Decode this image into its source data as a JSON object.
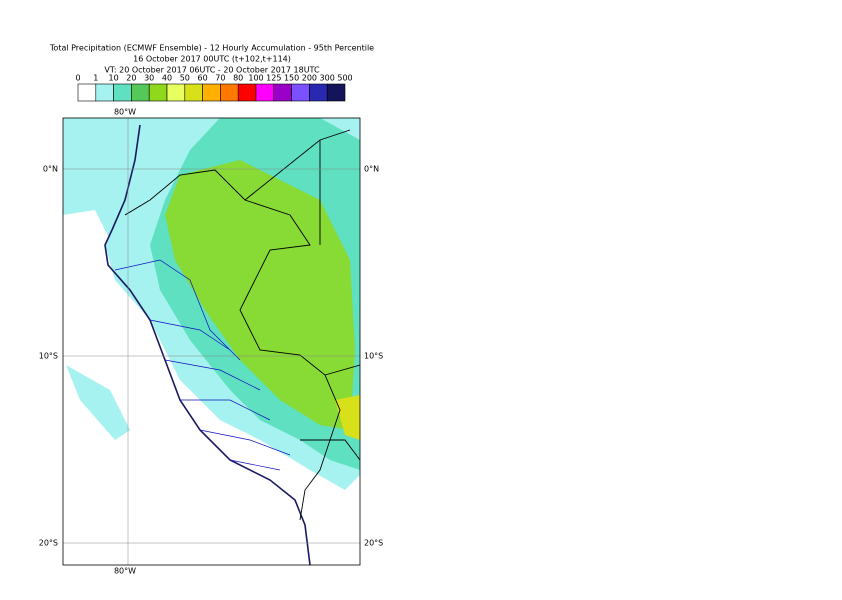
{
  "header": {
    "lines": [
      "Total Precipitation (ECMWF Ensemble) - 12 Hourly Accumulation - 95th Percentile",
      "16 October 2017 00UTC (t+102,t+114)",
      "VT: 20 October 2017 06UTC - 20 October 2017 18UTC"
    ]
  },
  "legend": {
    "bins": [
      0,
      1,
      10,
      20,
      30,
      40,
      50,
      60,
      70,
      80,
      100,
      125,
      150,
      200,
      300,
      500
    ],
    "colors": [
      "#ffffff",
      "#a6f2f0",
      "#5fe0c0",
      "#56c85a",
      "#8fd81c",
      "#e8ff60",
      "#d8e01a",
      "#ffb000",
      "#ff7800",
      "#ff0000",
      "#ff00ff",
      "#9a00c8",
      "#7a50ff",
      "#2828b0",
      "#14145a"
    ]
  },
  "map": {
    "lon_labels": [
      "80°W"
    ],
    "lat_labels": [
      "0°N",
      "10°S",
      "20°S"
    ]
  }
}
